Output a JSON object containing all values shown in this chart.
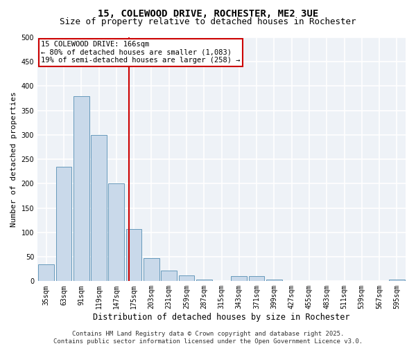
{
  "title": "15, COLEWOOD DRIVE, ROCHESTER, ME2 3UE",
  "subtitle": "Size of property relative to detached houses in Rochester",
  "xlabel": "Distribution of detached houses by size in Rochester",
  "ylabel": "Number of detached properties",
  "categories": [
    "35sqm",
    "63sqm",
    "91sqm",
    "119sqm",
    "147sqm",
    "175sqm",
    "203sqm",
    "231sqm",
    "259sqm",
    "287sqm",
    "315sqm",
    "343sqm",
    "371sqm",
    "399sqm",
    "427sqm",
    "455sqm",
    "483sqm",
    "511sqm",
    "539sqm",
    "567sqm",
    "595sqm"
  ],
  "values": [
    35,
    235,
    380,
    300,
    200,
    107,
    48,
    22,
    12,
    4,
    0,
    10,
    10,
    4,
    0,
    1,
    0,
    1,
    0,
    0,
    3
  ],
  "bar_color": "#c9d9ea",
  "bar_edge_color": "#6699bb",
  "vline_position": 4.72,
  "vline_color": "#cc0000",
  "annotation_text": "15 COLEWOOD DRIVE: 166sqm\n← 80% of detached houses are smaller (1,083)\n19% of semi-detached houses are larger (258) →",
  "annotation_box_facecolor": "#ffffff",
  "annotation_box_edgecolor": "#cc0000",
  "ylim": [
    0,
    500
  ],
  "yticks": [
    0,
    50,
    100,
    150,
    200,
    250,
    300,
    350,
    400,
    450,
    500
  ],
  "fig_bg_color": "#ffffff",
  "plot_bg_color": "#eef2f7",
  "grid_color": "#ffffff",
  "title_fontsize": 10,
  "subtitle_fontsize": 9,
  "xlabel_fontsize": 8.5,
  "ylabel_fontsize": 8,
  "tick_fontsize": 7,
  "annotation_fontsize": 7.5,
  "footer_fontsize": 6.5,
  "footer_text": "Contains HM Land Registry data © Crown copyright and database right 2025.\nContains public sector information licensed under the Open Government Licence v3.0."
}
